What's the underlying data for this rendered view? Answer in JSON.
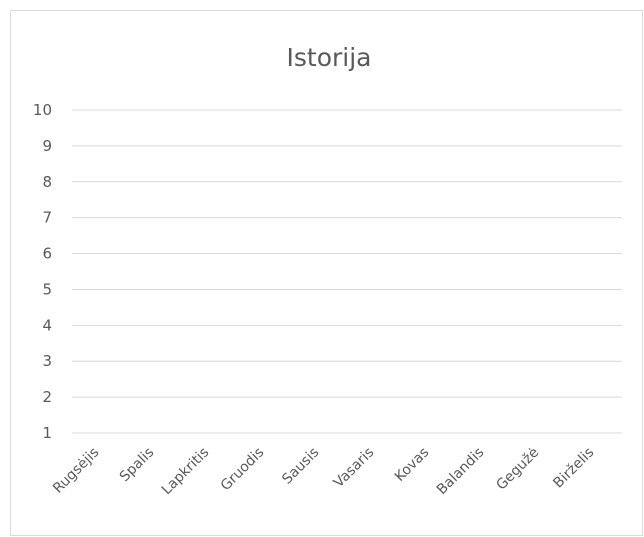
{
  "chart_data": {
    "type": "line",
    "title": "Istorija",
    "categories": [
      "Rugsėjis",
      "Spalis",
      "Lapkritis",
      "Gruodis",
      "Sausis",
      "Vasaris",
      "Kovas",
      "Balandis",
      "Gegužė",
      "Birželis"
    ],
    "y_ticks": [
      "1",
      "2",
      "3",
      "4",
      "5",
      "6",
      "7",
      "8",
      "9",
      "10"
    ],
    "ylim": [
      1,
      10
    ],
    "series": [],
    "grid": true,
    "legend": "none",
    "colors": {
      "text": "#595959",
      "grid": "#d9d9d9",
      "frame": "#d9d9d9"
    }
  }
}
